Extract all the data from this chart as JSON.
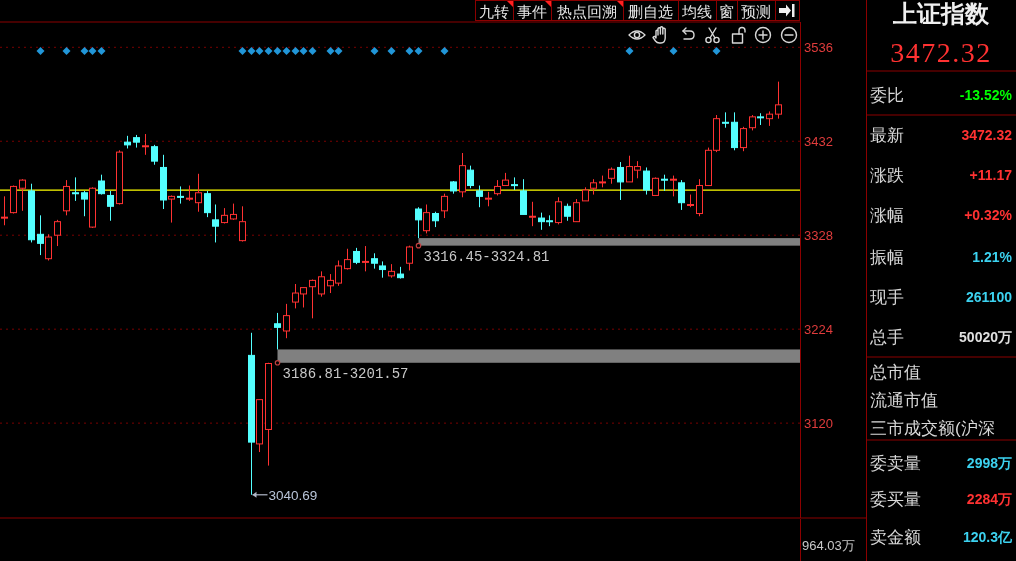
{
  "chart_data": [
    {
      "type": "candlestick",
      "categories": [
        null,
        null,
        null,
        null,
        null,
        null,
        null,
        null,
        null,
        null,
        null,
        null,
        null,
        null,
        null,
        null,
        null,
        null,
        null,
        null,
        null,
        null,
        null,
        null,
        null,
        null,
        null,
        null,
        null,
        null,
        null,
        null,
        null,
        null,
        null,
        null,
        null,
        null,
        null,
        null,
        null,
        null,
        null,
        null,
        null,
        null,
        null,
        null,
        null,
        null,
        null,
        null,
        null,
        null,
        null,
        null,
        null,
        null,
        null,
        null,
        null,
        null,
        null,
        null,
        null,
        null,
        null,
        null,
        null,
        null,
        null,
        null,
        null,
        null,
        null,
        null,
        null,
        null,
        null,
        null,
        null,
        null,
        null,
        null,
        null,
        null,
        null,
        null,
        null,
        null,
        null
      ],
      "ohlc": [
        [
          3347,
          3371,
          3339,
          3348
        ],
        [
          3353,
          3383,
          3352,
          3382
        ],
        [
          3380,
          3390,
          3355,
          3389
        ],
        [
          3377,
          3385,
          3320,
          3323
        ],
        [
          3329,
          3350,
          3306,
          3319
        ],
        [
          3302,
          3329,
          3300,
          3326
        ],
        [
          3328,
          3345,
          3316,
          3343
        ],
        [
          3355,
          3389,
          3350,
          3382
        ],
        [
          3375,
          3392,
          3366,
          3374
        ],
        [
          3375,
          3377,
          3349,
          3368
        ],
        [
          3337,
          3381,
          3336,
          3380
        ],
        [
          3388,
          3395,
          3373,
          3374
        ],
        [
          3372,
          3377,
          3344,
          3360
        ],
        [
          3363,
          3422,
          3362,
          3420
        ],
        [
          3431,
          3438,
          3424,
          3428
        ],
        [
          3436,
          3439,
          3425,
          3431
        ],
        [
          3426,
          3440,
          3417,
          3427
        ],
        [
          3426,
          3428,
          3406,
          3410
        ],
        [
          3403,
          3417,
          3357,
          3367
        ],
        [
          3368,
          3372,
          3342,
          3371
        ],
        [
          3371,
          3382,
          3363,
          3370
        ],
        [
          3368,
          3383,
          3366,
          3369
        ],
        [
          3364,
          3396,
          3354,
          3375
        ],
        [
          3374,
          3377,
          3348,
          3353
        ],
        [
          3345,
          3362,
          3320,
          3338
        ],
        [
          3342,
          3358,
          3341,
          3350
        ],
        [
          3346,
          3363,
          3345,
          3351
        ],
        [
          3322,
          3360,
          3321,
          3343
        ],
        [
          3195,
          3220,
          3040.69,
          3099
        ],
        [
          3097,
          3146,
          3088,
          3146
        ],
        [
          3113,
          3186.81,
          3073,
          3186
        ],
        [
          3230,
          3242,
          3201.57,
          3226
        ],
        [
          3222,
          3252,
          3214,
          3239
        ],
        [
          3254,
          3274,
          3247,
          3264
        ],
        [
          3263,
          3270,
          3248,
          3270
        ],
        [
          3271,
          3279,
          3236,
          3278
        ],
        [
          3263,
          3288,
          3260,
          3282
        ],
        [
          3272,
          3285,
          3264,
          3278
        ],
        [
          3275,
          3300,
          3272,
          3294
        ],
        [
          3291,
          3313,
          3290,
          3301
        ],
        [
          3310,
          3314,
          3296,
          3298
        ],
        [
          3298,
          3316,
          3288,
          3299
        ],
        [
          3302,
          3308,
          3291,
          3297
        ],
        [
          3294,
          3299,
          3281,
          3290
        ],
        [
          3283,
          3296,
          3281,
          3288
        ],
        [
          3285,
          3293,
          3280,
          3281
        ],
        [
          3297,
          3316.45,
          3289,
          3315
        ],
        [
          3357,
          3359,
          3324.81,
          3345
        ],
        [
          3333,
          3362,
          3330,
          3353
        ],
        [
          3352,
          3354,
          3337,
          3344
        ],
        [
          3355,
          3374,
          3347,
          3371
        ],
        [
          3387,
          3388,
          3374,
          3377
        ],
        [
          3376,
          3419,
          3370,
          3405
        ],
        [
          3400,
          3405,
          3380,
          3383
        ],
        [
          3377,
          3383,
          3359,
          3371
        ],
        [
          3368,
          3376,
          3360,
          3369
        ],
        [
          3374,
          3389,
          3372,
          3382
        ],
        [
          3383,
          3397,
          3383,
          3389
        ],
        [
          3384,
          3392,
          3378,
          3383
        ],
        [
          3377,
          3390,
          3351,
          3351
        ],
        [
          3348,
          3365,
          3338,
          3349
        ],
        [
          3347,
          3353,
          3334,
          3343
        ],
        [
          3344,
          3350,
          3338,
          3343
        ],
        [
          3342,
          3370,
          3340,
          3365
        ],
        [
          3360,
          3363,
          3344,
          3349
        ],
        [
          3343,
          3368,
          3343,
          3364
        ],
        [
          3366,
          3381,
          3366,
          3378
        ],
        [
          3380,
          3390,
          3373,
          3386
        ],
        [
          3386,
          3394,
          3381,
          3387
        ],
        [
          3391,
          3403,
          3385,
          3401
        ],
        [
          3403,
          3409,
          3367,
          3387
        ],
        [
          3387,
          3416,
          3387,
          3404
        ],
        [
          3400,
          3410,
          3391,
          3404
        ],
        [
          3399,
          3403,
          3373,
          3378
        ],
        [
          3372,
          3392,
          3372,
          3391
        ],
        [
          3390,
          3395,
          3377,
          3389
        ],
        [
          3389,
          3394,
          3371,
          3390
        ],
        [
          3386,
          3389,
          3356,
          3364
        ],
        [
          3361,
          3373,
          3359,
          3362
        ],
        [
          3352,
          3390,
          3349,
          3383
        ],
        [
          3383,
          3425,
          3383,
          3422
        ],
        [
          3422,
          3461,
          3420,
          3457
        ],
        [
          3453,
          3464,
          3447,
          3452
        ],
        [
          3453,
          3464,
          3422,
          3425
        ],
        [
          3425,
          3448,
          3421,
          3446
        ],
        [
          3447,
          3461,
          3444,
          3459
        ],
        [
          3459,
          3463,
          3450,
          3458
        ],
        [
          3457,
          3465,
          3449,
          3462
        ],
        [
          3462,
          3498,
          3457,
          3472.32
        ],
        null,
        null
      ],
      "colors": [
        "#ff3232",
        "#ff3232",
        "#ff3232",
        "#54ffff",
        "#54ffff",
        "#ff3232",
        "#ff3232",
        "#ff3232",
        "#54ffff",
        "#54ffff",
        "#ff3232",
        "#54ffff",
        "#54ffff",
        "#ff3232",
        "#54ffff",
        "#54ffff",
        "#ff3232",
        "#54ffff",
        "#54ffff",
        "#ff3232",
        "#54ffff",
        "#ff3232",
        "#ff3232",
        "#54ffff",
        "#54ffff",
        "#ff3232",
        "#ff3232",
        "#ff3232",
        "#54ffff",
        "#ff3232",
        "#ff3232",
        "#54ffff",
        "#ff3232",
        "#ff3232",
        "#ff3232",
        "#ff3232",
        "#ff3232",
        "#ff3232",
        "#ff3232",
        "#ff3232",
        "#54ffff",
        "#ff3232",
        "#54ffff",
        "#54ffff",
        "#ff3232",
        "#54ffff",
        "#ff3232",
        "#54ffff",
        "#ff3232",
        "#54ffff",
        "#ff3232",
        "#54ffff",
        "#ff3232",
        "#54ffff",
        "#54ffff",
        "#ff3232",
        "#ff3232",
        "#ff3232",
        "#54ffff",
        "#54ffff",
        "#ff3232",
        "#54ffff",
        "#54ffff",
        "#ff3232",
        "#54ffff",
        "#ff3232",
        "#ff3232",
        "#ff3232",
        "#ff3232",
        "#ff3232",
        "#54ffff",
        "#ff3232",
        "#ff3232",
        "#54ffff",
        "#ff3232",
        "#54ffff",
        "#ff3232",
        "#54ffff",
        "#ff3232",
        "#ff3232",
        "#ff3232",
        "#ff3232",
        "#54ffff",
        "#54ffff",
        "#ff3232",
        "#ff3232",
        "#54ffff",
        "#ff3232",
        "#ff3232",
        null,
        null
      ],
      "series": [
        {
          "type": "scatter",
          "color": "#2196d8",
          "values": [
            null,
            null,
            null,
            null,
            3532,
            null,
            null,
            3532,
            null,
            3532,
            3532,
            3532,
            null,
            null,
            null,
            null,
            null,
            null,
            null,
            null,
            null,
            null,
            null,
            null,
            null,
            null,
            null,
            3532,
            3532,
            3532,
            3532,
            3532,
            3532,
            3532,
            3532,
            3532,
            null,
            3532,
            3532,
            null,
            null,
            null,
            3532,
            null,
            3532,
            null,
            3532,
            3532,
            null,
            null,
            3532,
            null,
            null,
            null,
            null,
            null,
            null,
            null,
            null,
            null,
            null,
            null,
            null,
            null,
            null,
            null,
            null,
            null,
            null,
            null,
            null,
            3532,
            null,
            null,
            null,
            null,
            3532,
            null,
            null,
            null,
            null,
            3532,
            null,
            null,
            null,
            null,
            null,
            null,
            null,
            null,
            null
          ]
        }
      ],
      "marker": "diamond",
      "ylim": [
        3015,
        3564
      ],
      "yticks": [
        3120,
        3224,
        3328,
        3432,
        3536
      ],
      "grid": "y",
      "tick_labels": "y",
      "ref_lines": [
        {
          "axis": "y",
          "value": 3378,
          "color": "#ffff00"
        }
      ],
      "bands": [
        {
          "axis": "y",
          "from": 3186.81,
          "to": 3201.57,
          "label": "3186.81-3201.57",
          "color": "#808080"
        },
        {
          "axis": "y",
          "from": 3316.45,
          "to": 3324.81,
          "label": "3316.45-3324.81",
          "color": "#808080"
        }
      ],
      "annotations": [
        "3040.69",
        "964.03万"
      ]
    },
    {
      "type": "other",
      "title": "上证指数",
      "subtitle": "3472.32",
      "categories": [
        "委比",
        "最新",
        "涨跌",
        "涨幅",
        "振幅",
        "现手",
        "总手",
        "总市值",
        "流通市值",
        "三市成交额(沪深",
        "委卖量",
        "委买量",
        "卖金额"
      ],
      "value_labels": [
        "-13.52%",
        "3472.32",
        "+11.17",
        "+0.32%",
        "1.21%",
        "261100",
        "50020万",
        null,
        null,
        null,
        "2998万",
        "2284万",
        "120.3亿"
      ],
      "colors": [
        "#00ff00",
        "#ff3232",
        "#ff3232",
        "#ff3232",
        "#3cd2f0",
        "#3cd2f0",
        "#e0e0e0",
        null,
        null,
        null,
        "#3cd2f0",
        "#ff3232",
        "#3cd2f0"
      ]
    },
    {
      "type": "other",
      "categories": [
        "九转",
        "事件",
        "热点回溯",
        "删自选",
        "均线",
        "窗",
        "预测"
      ]
    }
  ]
}
